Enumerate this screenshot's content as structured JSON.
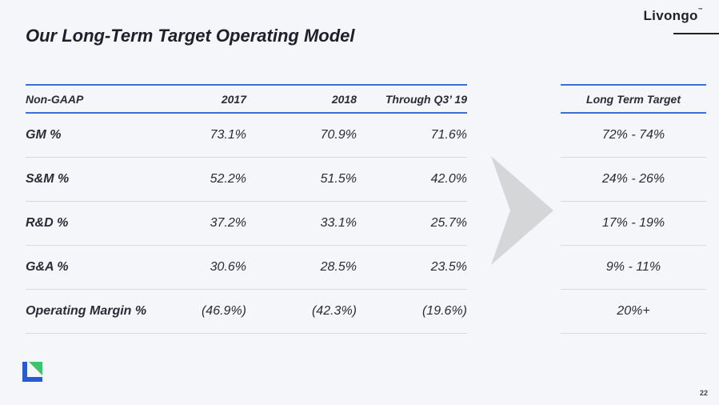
{
  "brand": {
    "name": "Livongo",
    "mark": "™"
  },
  "title": "Our Long-Term Target Operating Model",
  "table": {
    "headers": [
      "Non-GAAP",
      "2017",
      "2018",
      "Through Q3’ 19"
    ],
    "rows": [
      {
        "label": "GM %",
        "values": [
          "73.1%",
          "70.9%",
          "71.6%"
        ]
      },
      {
        "label": "S&M %",
        "values": [
          "52.2%",
          "51.5%",
          "42.0%"
        ]
      },
      {
        "label": "R&D %",
        "values": [
          "37.2%",
          "33.1%",
          "25.7%"
        ]
      },
      {
        "label": "G&A %",
        "values": [
          "30.6%",
          "28.5%",
          "23.5%"
        ]
      },
      {
        "label": "Operating Margin %",
        "values": [
          "(46.9%)",
          "(42.3%)",
          "(19.6%)"
        ]
      }
    ]
  },
  "target": {
    "header": "Long Term Target",
    "values": [
      "72% - 74%",
      "24% - 26%",
      "17% - 19%",
      "9% - 11%",
      "20%+"
    ]
  },
  "page_number": "22",
  "colors": {
    "accent": "#3a6fd8",
    "arrow": "#d4d6d8",
    "logo_blue": "#2a5bd7",
    "logo_green": "#3ec46d"
  },
  "icons": {
    "arrow": "chevron-right-arrow-icon",
    "logo": "livongo-logo-icon"
  }
}
